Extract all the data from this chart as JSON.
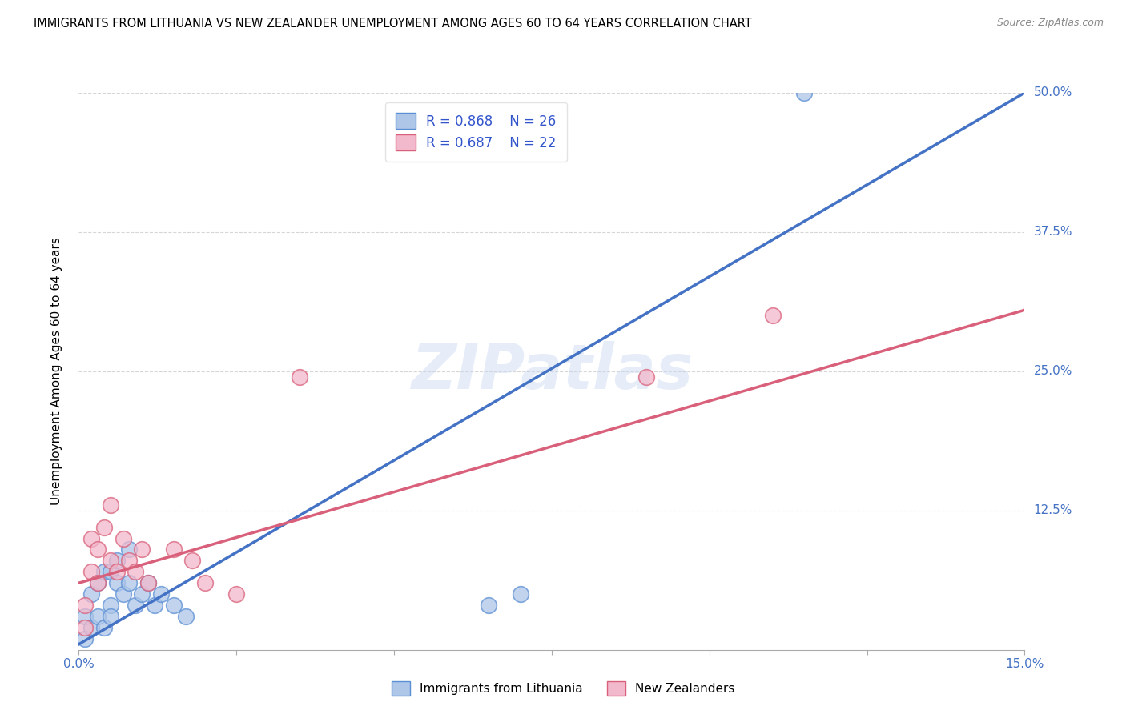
{
  "title": "IMMIGRANTS FROM LITHUANIA VS NEW ZEALANDER UNEMPLOYMENT AMONG AGES 60 TO 64 YEARS CORRELATION CHART",
  "source": "Source: ZipAtlas.com",
  "ylabel": "Unemployment Among Ages 60 to 64 years",
  "xlim": [
    0,
    0.15
  ],
  "ylim": [
    0,
    0.5
  ],
  "xticks": [
    0.0,
    0.025,
    0.05,
    0.075,
    0.1,
    0.125,
    0.15
  ],
  "yticks": [
    0.0,
    0.125,
    0.25,
    0.375,
    0.5
  ],
  "yticklabels": [
    "",
    "12.5%",
    "25.0%",
    "37.5%",
    "50.0%"
  ],
  "blue_color": "#aec6e8",
  "blue_edge_color": "#5b8fd4",
  "blue_line_color": "#4472c4",
  "pink_color": "#f2b8cb",
  "pink_edge_color": "#d9607a",
  "pink_line_color": "#d9607a",
  "legend_color": "#3355cc",
  "legend_r1": "R = 0.868",
  "legend_n1": "N = 26",
  "legend_r2": "R = 0.687",
  "legend_n2": "N = 22",
  "watermark": "ZIPatlas",
  "blue_scatter_x": [
    0.001,
    0.001,
    0.002,
    0.002,
    0.003,
    0.003,
    0.004,
    0.004,
    0.005,
    0.005,
    0.005,
    0.006,
    0.006,
    0.007,
    0.008,
    0.008,
    0.009,
    0.01,
    0.011,
    0.012,
    0.013,
    0.015,
    0.017,
    0.065,
    0.07,
    0.115
  ],
  "blue_scatter_y": [
    0.01,
    0.03,
    0.02,
    0.05,
    0.03,
    0.06,
    0.02,
    0.07,
    0.04,
    0.07,
    0.03,
    0.06,
    0.08,
    0.05,
    0.06,
    0.09,
    0.04,
    0.05,
    0.06,
    0.04,
    0.05,
    0.04,
    0.03,
    0.04,
    0.05,
    0.5
  ],
  "pink_scatter_x": [
    0.001,
    0.001,
    0.002,
    0.002,
    0.003,
    0.003,
    0.004,
    0.005,
    0.005,
    0.006,
    0.007,
    0.008,
    0.009,
    0.01,
    0.011,
    0.015,
    0.018,
    0.02,
    0.025,
    0.035,
    0.09,
    0.11
  ],
  "pink_scatter_y": [
    0.02,
    0.04,
    0.07,
    0.1,
    0.06,
    0.09,
    0.11,
    0.08,
    0.13,
    0.07,
    0.1,
    0.08,
    0.07,
    0.09,
    0.06,
    0.09,
    0.08,
    0.06,
    0.05,
    0.245,
    0.245,
    0.3
  ],
  "blue_line_x": [
    0.0,
    0.15
  ],
  "blue_line_y": [
    0.005,
    0.5
  ],
  "pink_line_x": [
    0.0,
    0.15
  ],
  "pink_line_y": [
    0.06,
    0.305
  ],
  "background_color": "#ffffff",
  "grid_color": "#cccccc"
}
